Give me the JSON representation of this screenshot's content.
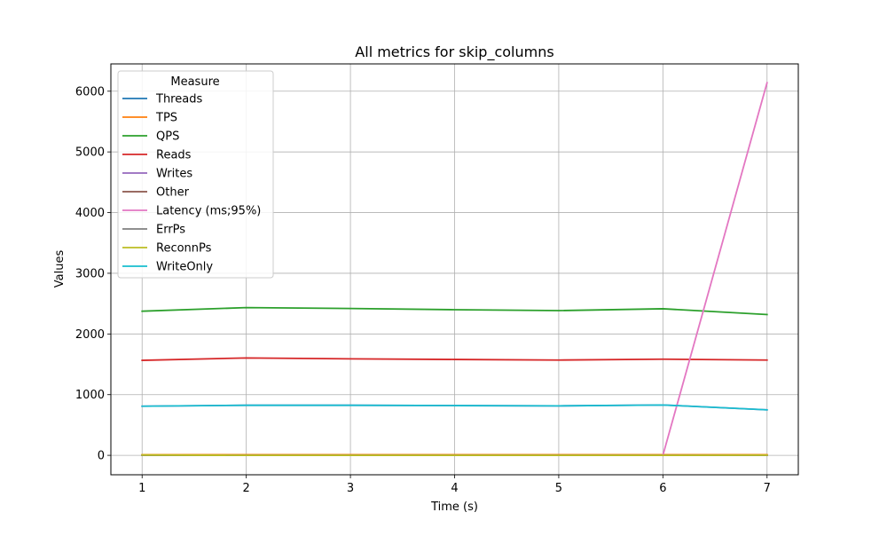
{
  "chart_data": {
    "type": "line",
    "title": "All metrics for skip_columns",
    "xlabel": "Time (s)",
    "ylabel": "Values",
    "x": [
      1,
      2,
      3,
      4,
      5,
      6,
      7
    ],
    "xlim": [
      0.7,
      7.3
    ],
    "ylim": [
      -320,
      6450
    ],
    "xticks": [
      1,
      2,
      3,
      4,
      5,
      6,
      7
    ],
    "yticks": [
      0,
      1000,
      2000,
      3000,
      4000,
      5000,
      6000
    ],
    "grid": true,
    "legend": {
      "title": "Measure",
      "placement": "top-left"
    },
    "series": [
      {
        "name": "Threads",
        "color": "#1f77b4",
        "values": [
          4,
          4,
          4,
          4,
          4,
          4,
          4
        ]
      },
      {
        "name": "TPS",
        "color": "#ff7f0e",
        "values": [
          10,
          10,
          10,
          10,
          10,
          10,
          10
        ]
      },
      {
        "name": "QPS",
        "color": "#2ca02c",
        "values": [
          2375,
          2435,
          2420,
          2400,
          2385,
          2415,
          2320
        ]
      },
      {
        "name": "Reads",
        "color": "#d62728",
        "values": [
          1565,
          1605,
          1590,
          1580,
          1570,
          1585,
          1570
        ]
      },
      {
        "name": "Writes",
        "color": "#9467bd",
        "values": [
          810,
          825,
          825,
          820,
          815,
          830,
          750
        ]
      },
      {
        "name": "Other",
        "color": "#8c564b",
        "values": [
          0,
          0,
          0,
          0,
          0,
          0,
          0
        ]
      },
      {
        "name": "Latency (ms;95%)",
        "color": "#e377c2",
        "values": [
          null,
          null,
          null,
          null,
          null,
          0,
          6140
        ]
      },
      {
        "name": "ErrPs",
        "color": "#7f7f7f",
        "values": [
          0,
          0,
          0,
          0,
          0,
          0,
          0
        ]
      },
      {
        "name": "ReconnPs",
        "color": "#bcbd22",
        "values": [
          6,
          0,
          0,
          0,
          0,
          0,
          3
        ]
      },
      {
        "name": "WriteOnly",
        "color": "#17becf",
        "values": [
          810,
          825,
          825,
          820,
          815,
          830,
          750
        ]
      }
    ]
  }
}
